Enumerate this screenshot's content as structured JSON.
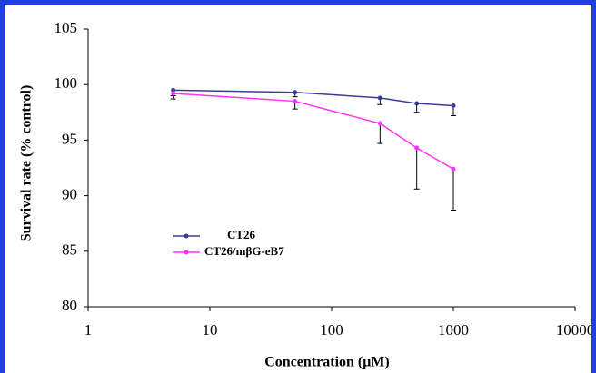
{
  "chart_data": {
    "type": "line",
    "x_label": "Concentration (μM)",
    "y_label": "Survival rate (% control)",
    "x": [
      5,
      50,
      250,
      500,
      1000
    ],
    "series": [
      {
        "name": "CT26",
        "color": "#3b3b9c",
        "values": [
          99.5,
          99.3,
          98.8,
          98.3,
          98.1
        ],
        "errors": [
          0.5,
          0.4,
          0.6,
          0.8,
          0.9
        ]
      },
      {
        "name": "CT26/mβG-eB7",
        "color": "#ff33ff",
        "values": [
          99.2,
          98.5,
          96.5,
          94.3,
          92.4
        ],
        "errors": [
          0.5,
          0.7,
          1.8,
          3.7,
          3.7
        ]
      }
    ],
    "xlim": [
      1,
      10000
    ],
    "xticks": [
      1,
      10,
      100,
      1000,
      10000
    ],
    "x_log_scale": true,
    "ylim": [
      80,
      105
    ],
    "yticks": [
      80,
      85,
      90,
      95,
      100,
      105
    ],
    "grid": false,
    "legend": "center-left"
  }
}
